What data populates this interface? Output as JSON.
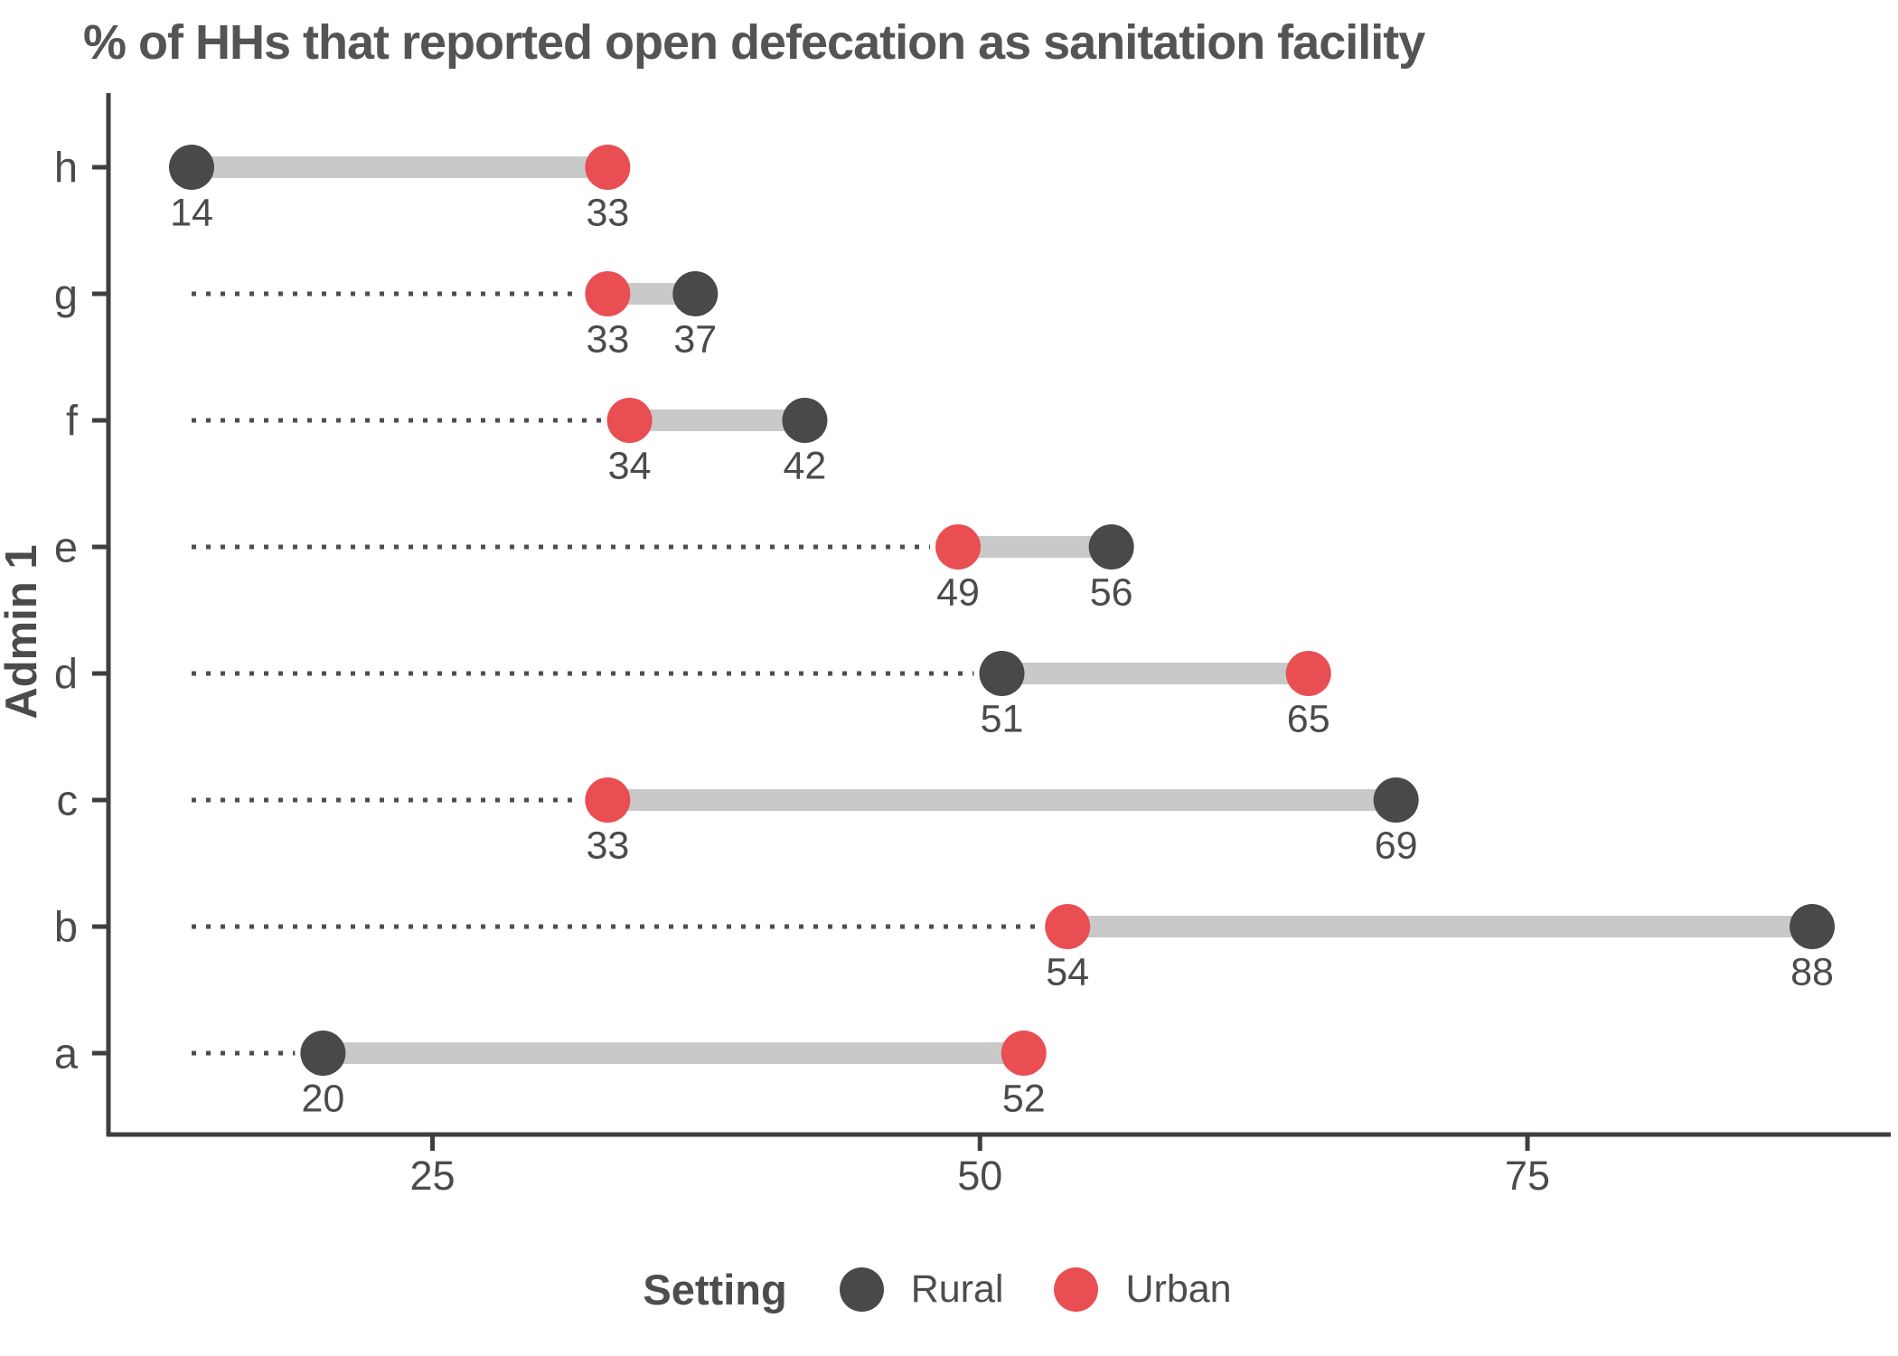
{
  "chart_data": {
    "type": "dumbbell",
    "title": "% of HHs that reported open defecation as sanitation facility",
    "xlabel": "",
    "ylabel": "Admin 1",
    "legend_title": "Setting",
    "legend_position": "bottom",
    "categories": [
      "h",
      "g",
      "f",
      "e",
      "d",
      "c",
      "b",
      "a"
    ],
    "series": [
      {
        "name": "Rural",
        "color": "#494949",
        "values": [
          14,
          37,
          42,
          56,
          51,
          69,
          88,
          20
        ]
      },
      {
        "name": "Urban",
        "color": "#E94E52",
        "values": [
          33,
          33,
          34,
          49,
          65,
          33,
          54,
          52
        ]
      }
    ],
    "x_ticks": [
      25,
      50,
      75
    ],
    "x_range": [
      10,
      91
    ],
    "grid": "off",
    "annotations": "each dot labeled with its value; dotted leader line runs from the overall minimum (14) to the nearer dot of each row; thick light-gray bar connects the Rural and Urban dots"
  },
  "colors": {
    "rural": "#494949",
    "urban": "#E94E52",
    "connector": "#C9C9C9",
    "leader": "#4E4E4E",
    "axis": "#3F3F3F",
    "text": "#4A4B4D",
    "title": "#535456",
    "background": "#FFFFFF"
  }
}
